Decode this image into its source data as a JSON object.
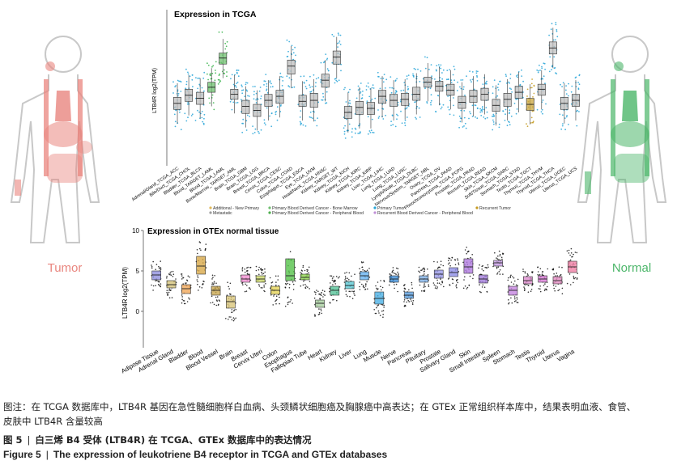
{
  "figure": {
    "left_label": "Tumor",
    "right_label": "Normal",
    "colors": {
      "tumor_red": "#e9867f",
      "normal_green": "#4cb66a",
      "tcga_box": "#bfbfbf",
      "tcga_dot": "#26a7d6"
    }
  },
  "chart_data": [
    {
      "type": "box",
      "title": "Expression in TCGA",
      "ylabel": "LTB4R log2(TPM)",
      "categories": [
        "Adrenal/Gland_TCGA_ACC",
        "Bile/Duct_TCGA_CHOL",
        "Bladder_TCGA_BLCA",
        "Blood_TARGET_LAML",
        "Blood_TCGA_LAML",
        "Bone/Marrow_TARGET_AML",
        "Brain_TCGA_GBM",
        "Brain_TCGA_LGG",
        "Breast_TCGA_BRCA",
        "Cervix_TCGA_CESC",
        "Colon_TCGA_COAD",
        "Esophagus_TCGA_ESCA",
        "Eye_TCGA_UVM",
        "Head/Neck_TCGA_HNSC",
        "Kidney_TARGET_WT",
        "Kidney_TCGA_KICH",
        "Kidney_TCGA_KIRC",
        "Kidney_TCGA_KIRP",
        "Liver_TCGA_LIHC",
        "Lung_TCGA_LUAD",
        "Lung_TCGA_LUSC",
        "Lymph/Node_TCGA_DLBC",
        "Nervous/System_TARGET_NBL",
        "Ovary_TCGA_OV",
        "Pancreas_TCGA_PAAD",
        "Pheochromocytoma_TCGA_PCPG",
        "Prostate_TCGA_PRAD",
        "Rectum_TCGA_READ",
        "Skin_TCGA_SKCM",
        "Soft/Tissue_TCGA_SARC",
        "Stomach_TCGA_STAD",
        "Testis_TCGA_TGCT",
        "Thymus_TCGA_THYM",
        "Thyroid_TCGA_THCA",
        "Uterus_TCGA_UCEC",
        "Uterus_TCGA_UCS"
      ],
      "series": [
        {
          "median": [
            0.7,
            1.5,
            1.2,
            2.3,
            5.2,
            1.6,
            0.4,
            0.0,
            1.0,
            1.4,
            4.4,
            0.9,
            1.0,
            3.0,
            5.3,
            -0.2,
            0.3,
            0.2,
            1.4,
            1.0,
            1.1,
            1.6,
            2.8,
            2.4,
            2.0,
            0.8,
            1.4,
            1.6,
            0.5,
            1.1,
            1.8,
            0.6,
            2.1,
            6.2,
            0.7,
            1.0
          ],
          "q1": [
            0.1,
            0.9,
            0.6,
            1.8,
            4.6,
            1.1,
            -0.3,
            -0.6,
            0.4,
            0.7,
            3.6,
            0.4,
            0.3,
            2.3,
            4.6,
            -0.8,
            -0.4,
            -0.4,
            0.7,
            0.4,
            0.5,
            1.0,
            2.3,
            1.9,
            1.5,
            0.2,
            0.8,
            1.0,
            -0.1,
            0.4,
            1.2,
            0.0,
            1.5,
            5.6,
            0.1,
            0.4
          ],
          "q3": [
            1.3,
            2.1,
            1.8,
            2.8,
            5.7,
            2.1,
            1.0,
            0.6,
            1.6,
            2.0,
            5.0,
            1.5,
            1.7,
            3.6,
            5.9,
            0.4,
            0.9,
            0.8,
            2.0,
            1.6,
            1.7,
            2.3,
            3.3,
            2.9,
            2.6,
            1.4,
            2.0,
            2.2,
            1.1,
            1.7,
            2.4,
            1.2,
            2.6,
            6.8,
            1.3,
            1.6
          ],
          "color": [
            "gray",
            "gray",
            "gray",
            "green",
            "green",
            "gray",
            "gray",
            "gray",
            "gray",
            "gray",
            "gray",
            "gray",
            "gray",
            "gray",
            "gray",
            "gray",
            "gray",
            "gray",
            "gray",
            "gray",
            "gray",
            "gray",
            "gray",
            "gray",
            "gray",
            "gray",
            "gray",
            "gray",
            "gray",
            "gray",
            "gray",
            "gold",
            "gray",
            "gray",
            "gray",
            "gray"
          ]
        }
      ],
      "ylim": [
        -5.5,
        10
      ],
      "legend": [
        "Additional - New Primary",
        "Metastatic",
        "Primary Blood Derived Cancer - Bone Marrow",
        "Primary Blood Derived Cancer - Peripheral Blood",
        "Primary Tumor",
        "Recurrent Blood Derived Cancer - Peripheral Blood",
        "Recurrent Tumor"
      ],
      "grid": false
    },
    {
      "type": "box",
      "title": "Expression in GTEx normal tissue",
      "ylabel": "LTB4R log2(TPM)",
      "yticks": [
        0,
        5,
        10
      ],
      "ylim": [
        -4.5,
        10
      ],
      "categories": [
        "Adipose Tissue",
        "Adrenal Gland",
        "Bladder",
        "Blood",
        "Blood Vessel",
        "Brain",
        "Breast",
        "Cervix Uteri",
        "Colon",
        "Esophagus",
        "Fallopian Tube",
        "Heart",
        "Kidney",
        "Liver",
        "Lung",
        "Muscle",
        "Nerve",
        "Pancreas",
        "Pituitary",
        "Prostate",
        "Salivary Gland",
        "Skin",
        "Small Intestine",
        "Spleen",
        "Stomach",
        "Testis",
        "Thyroid",
        "Uterus",
        "Vagina"
      ],
      "median": [
        4.5,
        3.3,
        2.8,
        5.6,
        2.6,
        1.2,
        4.0,
        4.0,
        2.6,
        4.4,
        4.2,
        1.0,
        2.6,
        3.2,
        4.4,
        1.6,
        4.0,
        2.0,
        4.0,
        4.6,
        4.8,
        5.5,
        4.0,
        6.0,
        2.6,
        3.8,
        4.0,
        3.8,
        5.5
      ],
      "q1": [
        3.9,
        2.9,
        2.2,
        4.6,
        2.0,
        0.4,
        3.6,
        3.6,
        2.1,
        3.8,
        3.9,
        0.5,
        2.0,
        2.8,
        3.9,
        0.9,
        3.6,
        1.6,
        3.6,
        4.1,
        4.3,
        4.7,
        3.5,
        5.6,
        2.0,
        3.4,
        3.6,
        3.4,
        4.8
      ],
      "q3": [
        5.0,
        3.8,
        3.3,
        6.8,
        3.1,
        1.9,
        4.5,
        4.4,
        3.1,
        6.5,
        4.6,
        1.4,
        3.1,
        3.7,
        4.9,
        2.4,
        4.4,
        2.4,
        4.4,
        5.1,
        5.4,
        6.5,
        4.5,
        6.3,
        3.1,
        4.3,
        4.4,
        4.3,
        6.2
      ],
      "color": [
        "#8f8fdc",
        "#d5c37a",
        "#f0a85a",
        "#d8a94a",
        "#c9a850",
        "#d9c57a",
        "#f08ecf",
        "#ccd86a",
        "#e6d45a",
        "#55c24a",
        "#8fd64f",
        "#a9d0a0",
        "#58c49a",
        "#5ecad6",
        "#66b3f0",
        "#4bb0e5",
        "#3f8fd8",
        "#5a9fe0",
        "#7fb0e6",
        "#9b9bea",
        "#8e8ee8",
        "#b07be0",
        "#a37ddb",
        "#c79ee6",
        "#c584e0",
        "#e08fd0",
        "#d87ad6",
        "#e58fc4",
        "#f07fa5"
      ]
    }
  ],
  "caption": {
    "note_line1": "图注：在 TCGA 数据库中，LTB4R 基因在急性髓细胞样白血病、头颈鳞状细胞癌及胸腺癌中高表达；在 GTEx 正常组织样本库中，结果表明血液、食管、",
    "note_line2": "皮肤中 LTB4R 含量较高",
    "fig_num_cn": "图 5",
    "title_cn": "白三烯 B4 受体 (LTB4R) 在 TCGA、GTEx 数据库中的表达情况",
    "fig_num_en": "Figure 5",
    "title_en": "The expression of leukotriene B4 receptor in TCGA and GTEx databases"
  }
}
